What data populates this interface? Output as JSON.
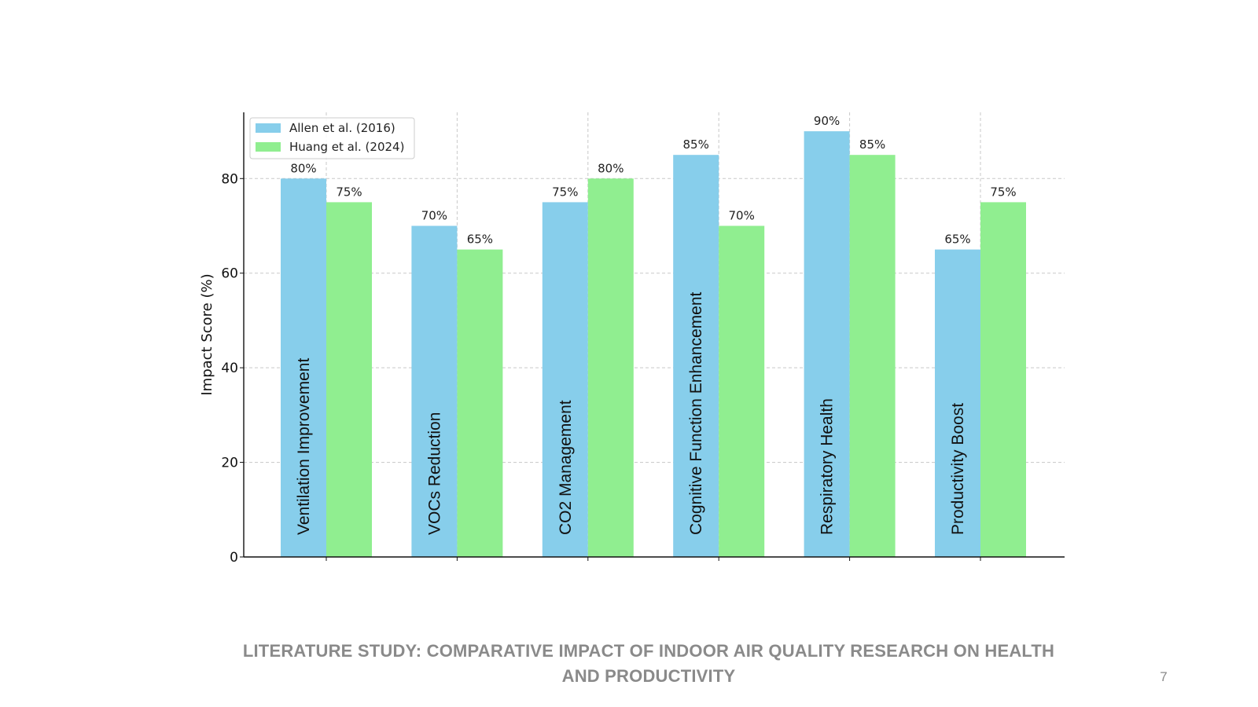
{
  "slide": {
    "caption": "LITERATURE STUDY: COMPARATIVE IMPACT OF INDOOR AIR QUALITY RESEARCH ON HEALTH AND PRODUCTIVITY",
    "page_number": "7"
  },
  "chart_data": {
    "type": "bar",
    "title": "",
    "xlabel": "",
    "ylabel": "Impact Score (%)",
    "ylim": [
      0,
      94
    ],
    "yticks": [
      0,
      20,
      40,
      60,
      80
    ],
    "grid": true,
    "legend_position": "top-left",
    "categories": [
      "Ventilation Improvement",
      "VOCs Reduction",
      "CO2 Management",
      "Cognitive Function Enhancement",
      "Respiratory Health",
      "Productivity Boost"
    ],
    "series": [
      {
        "name": "Allen et al. (2016)",
        "color": "#87ceeb",
        "values": [
          80,
          70,
          75,
          85,
          90,
          65
        ],
        "labels": [
          "80%",
          "70%",
          "75%",
          "85%",
          "90%",
          "65%"
        ]
      },
      {
        "name": "Huang et al. (2024)",
        "color": "#90ee90",
        "values": [
          75,
          65,
          80,
          70,
          85,
          75
        ],
        "labels": [
          "75%",
          "65%",
          "80%",
          "70%",
          "85%",
          "75%"
        ]
      }
    ]
  }
}
